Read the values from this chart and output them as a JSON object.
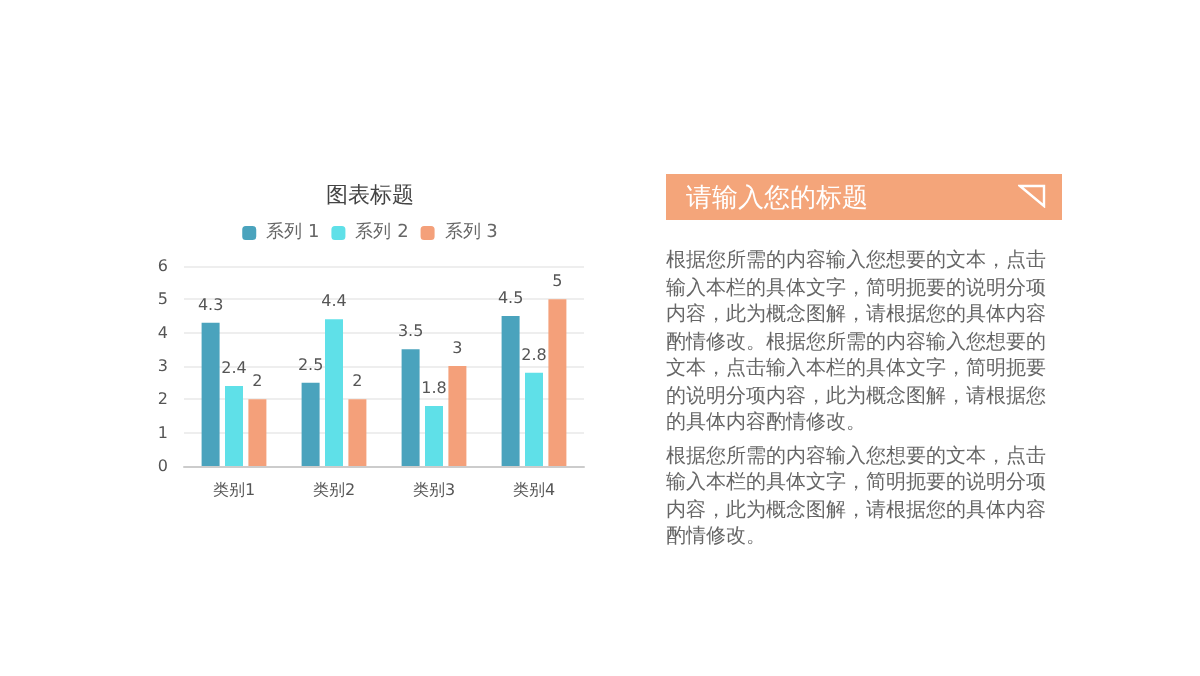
{
  "chart_data": [
    {
      "type": "bar",
      "title": "图表标题",
      "categories": [
        "类别1",
        "类别2",
        "类别3",
        "类别4"
      ],
      "series": [
        {
          "name": "系列 1",
          "color": "#4aa3bd",
          "values": [
            4.3,
            2.5,
            3.5,
            4.5
          ]
        },
        {
          "name": "系列 2",
          "color": "#5fe0e8",
          "values": [
            2.4,
            4.4,
            1.8,
            2.8
          ]
        },
        {
          "name": "系列 3",
          "color": "#f4a07a",
          "values": [
            2,
            2,
            3,
            5
          ]
        }
      ],
      "ylim": [
        0,
        6
      ],
      "yticks": [
        0,
        1,
        2,
        3,
        4,
        5,
        6
      ],
      "grid": "y",
      "legend": "top",
      "data_labels": true
    },
    {
      "type": "other",
      "title": "请输入您的标题",
      "annotations": [
        "根据您所需的内容输入您想要的文本，点击输入本栏的具体文字，简明扼要的说明分项内容，此为概念图解，请根据您的具体内容酌情修改。根据您所需的内容输入您想要的文本，点击输入本栏的具体文字，简明扼要的说明分项内容，此为概念图解，请根据您的具体内容酌情修改。",
        "根据您所需的内容输入您想要的文本，点击输入本栏的具体文字，简明扼要的说明分项内容，此为概念图解，请根据您的具体内容酌情修改。"
      ]
    }
  ]
}
